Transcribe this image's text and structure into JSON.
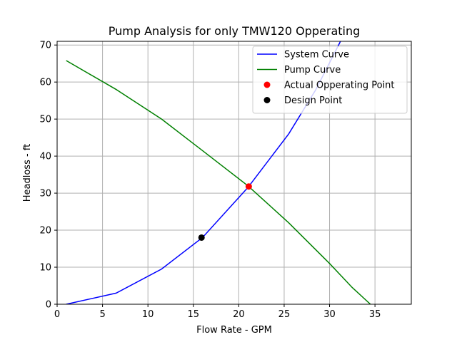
{
  "chart_data": {
    "type": "line",
    "title": "Pump Analysis for only TMW120 Opperating",
    "xlabel": "Flow Rate - GPM",
    "ylabel": "Headloss - ft",
    "xlim": [
      0,
      39
    ],
    "ylim": [
      0,
      71
    ],
    "xticks": [
      0,
      5,
      10,
      15,
      20,
      25,
      30,
      35
    ],
    "yticks": [
      0,
      10,
      20,
      30,
      40,
      50,
      60,
      70
    ],
    "grid": true,
    "legend_position": "top-right",
    "series": [
      {
        "name": "System Curve",
        "kind": "line",
        "color": "#0000ff",
        "points": [
          [
            1,
            0
          ],
          [
            6.5,
            3
          ],
          [
            11.5,
            9.5
          ],
          [
            16,
            18
          ],
          [
            21,
            31.5
          ],
          [
            25.5,
            46
          ],
          [
            28.5,
            58
          ],
          [
            31.2,
            71
          ]
        ]
      },
      {
        "name": "Pump Curve",
        "kind": "line",
        "color": "#008000",
        "points": [
          [
            1,
            65.8
          ],
          [
            6.5,
            58
          ],
          [
            11.5,
            50
          ],
          [
            16,
            41.5
          ],
          [
            21,
            32
          ],
          [
            25.5,
            22
          ],
          [
            30,
            11
          ],
          [
            32.5,
            4.5
          ],
          [
            34.5,
            0
          ]
        ]
      },
      {
        "name": "Actual Opperating Point",
        "kind": "point",
        "color": "#ff0000",
        "points": [
          [
            21.1,
            31.8
          ]
        ]
      },
      {
        "name": "Design Point",
        "kind": "point",
        "color": "#000000",
        "points": [
          [
            15.9,
            18
          ]
        ]
      }
    ]
  }
}
